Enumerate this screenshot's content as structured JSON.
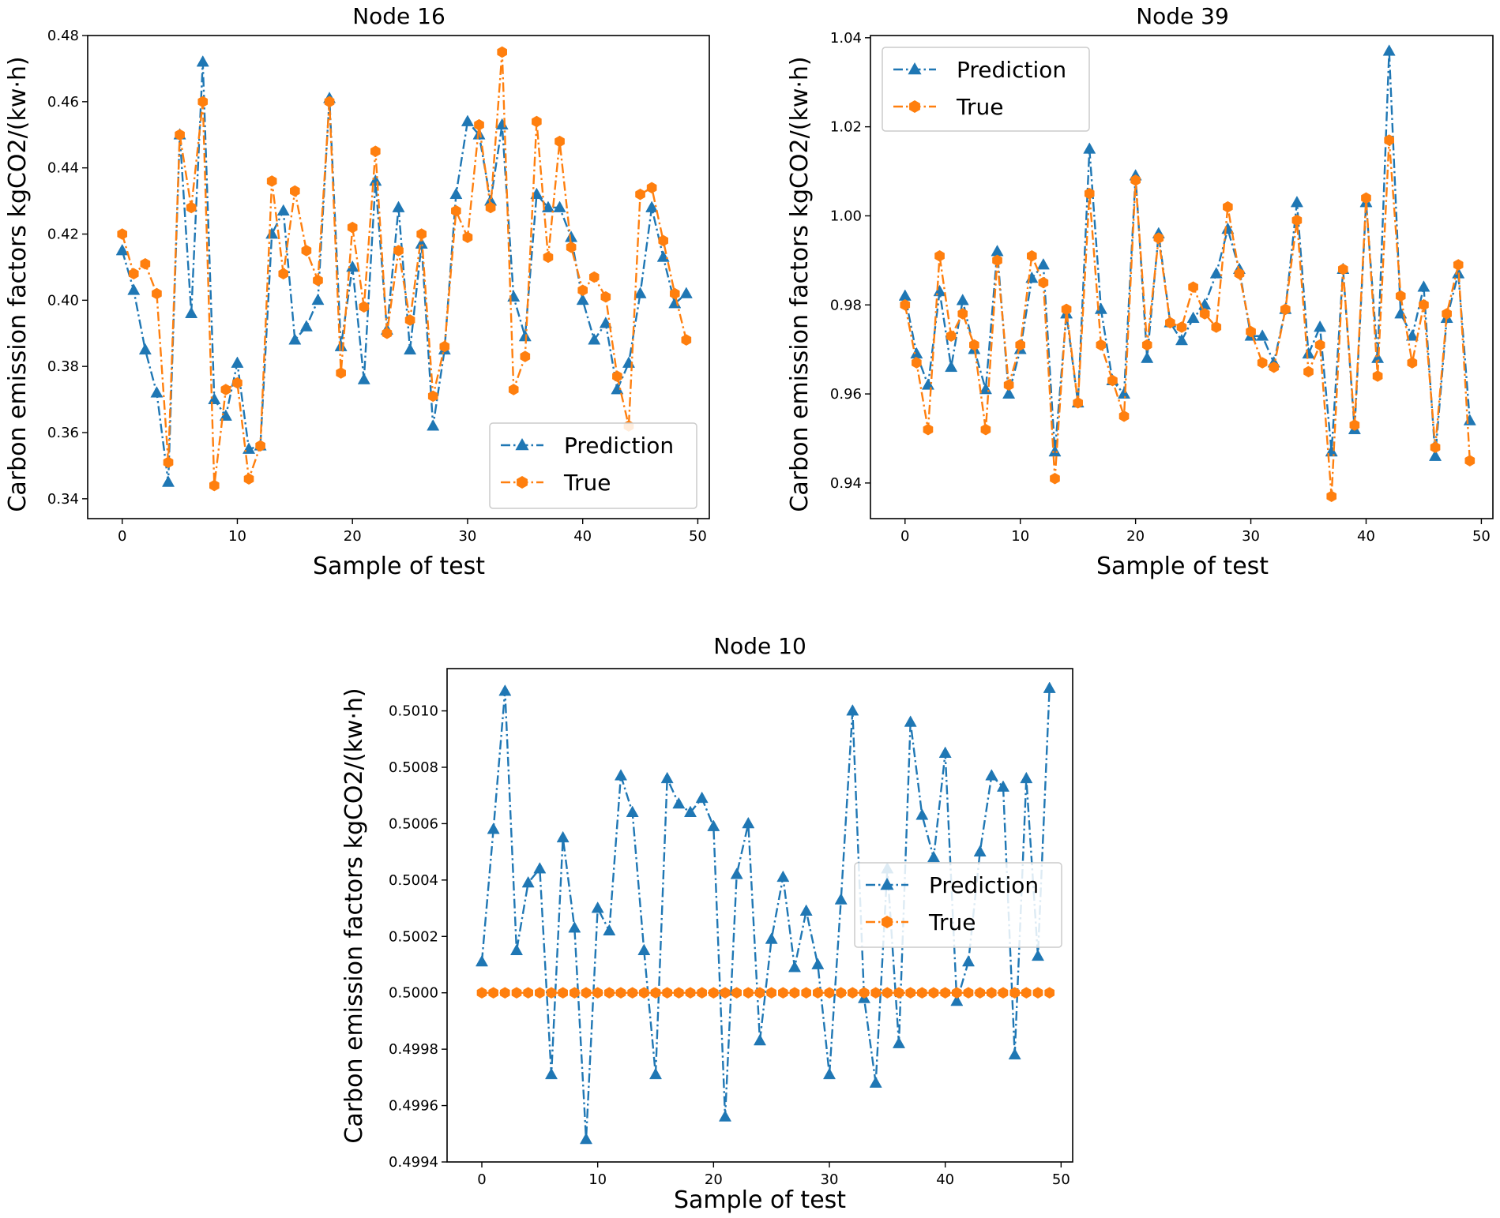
{
  "chart_data": [
    {
      "type": "line",
      "title": "Node 16",
      "xlabel": "Sample of test",
      "ylabel": "Carbon emission factors kgCO2/(kw·h)",
      "xlim": [
        -3,
        51
      ],
      "ylim": [
        0.334,
        0.48
      ],
      "xticks": [
        0,
        10,
        20,
        30,
        40,
        50
      ],
      "xtick_labels": [
        "0",
        "10",
        "20",
        "30",
        "40",
        "50"
      ],
      "yticks": [
        0.34,
        0.36,
        0.38,
        0.4,
        0.42,
        0.44,
        0.46,
        0.48
      ],
      "ytick_labels": [
        "0.34",
        "0.36",
        "0.38",
        "0.40",
        "0.42",
        "0.44",
        "0.46",
        "0.48"
      ],
      "legend_position": "lower-right",
      "series": [
        {
          "name": "Prediction",
          "color": "#1f77b4",
          "marker": "triangle",
          "linestyle": "dashdot",
          "values": [
            0.415,
            0.403,
            0.385,
            0.372,
            0.345,
            0.45,
            0.396,
            0.472,
            0.37,
            0.365,
            0.381,
            0.355,
            0.356,
            0.42,
            0.427,
            0.388,
            0.392,
            0.4,
            0.461,
            0.386,
            0.41,
            0.376,
            0.436,
            0.391,
            0.428,
            0.385,
            0.417,
            0.362,
            0.385,
            0.432,
            0.454,
            0.45,
            0.43,
            0.453,
            0.401,
            0.389,
            0.432,
            0.428,
            0.428,
            0.419,
            0.4,
            0.388,
            0.393,
            0.373,
            0.381,
            0.402,
            0.428,
            0.413,
            0.399,
            0.402
          ]
        },
        {
          "name": "True",
          "color": "#ff7f0e",
          "marker": "hexagon",
          "linestyle": "dashdot",
          "values": [
            0.42,
            0.408,
            0.411,
            0.402,
            0.351,
            0.45,
            0.428,
            0.46,
            0.344,
            0.373,
            0.375,
            0.346,
            0.356,
            0.436,
            0.408,
            0.433,
            0.415,
            0.406,
            0.46,
            0.378,
            0.422,
            0.398,
            0.445,
            0.39,
            0.415,
            0.394,
            0.42,
            0.371,
            0.386,
            0.427,
            0.419,
            0.453,
            0.428,
            0.475,
            0.373,
            0.383,
            0.454,
            0.413,
            0.448,
            0.416,
            0.403,
            0.407,
            0.401,
            0.377,
            0.362,
            0.432,
            0.434,
            0.418,
            0.402,
            0.388
          ]
        }
      ]
    },
    {
      "type": "line",
      "title": "Node 39",
      "xlabel": "Sample of test",
      "ylabel": "Carbon emission factors kgCO2/(kw·h)",
      "xlim": [
        -3,
        51
      ],
      "ylim": [
        0.932,
        1.0405
      ],
      "xticks": [
        0,
        10,
        20,
        30,
        40,
        50
      ],
      "xtick_labels": [
        "0",
        "10",
        "20",
        "30",
        "40",
        "50"
      ],
      "yticks": [
        0.94,
        0.96,
        0.98,
        1.0,
        1.02,
        1.04
      ],
      "ytick_labels": [
        "0.94",
        "0.96",
        "0.98",
        "1.00",
        "1.02",
        "1.04"
      ],
      "legend_position": "upper-left",
      "series": [
        {
          "name": "Prediction",
          "color": "#1f77b4",
          "marker": "triangle",
          "linestyle": "dashdot",
          "values": [
            0.982,
            0.969,
            0.962,
            0.983,
            0.966,
            0.981,
            0.97,
            0.961,
            0.992,
            0.96,
            0.97,
            0.986,
            0.989,
            0.947,
            0.978,
            0.958,
            1.015,
            0.979,
            0.963,
            0.96,
            1.009,
            0.968,
            0.996,
            0.976,
            0.972,
            0.977,
            0.98,
            0.987,
            0.997,
            0.988,
            0.973,
            0.973,
            0.967,
            0.979,
            1.003,
            0.969,
            0.975,
            0.947,
            0.988,
            0.952,
            1.003,
            0.968,
            1.037,
            0.978,
            0.973,
            0.984,
            0.946,
            0.977,
            0.987,
            0.954
          ]
        },
        {
          "name": "True",
          "color": "#ff7f0e",
          "marker": "hexagon",
          "linestyle": "dashdot",
          "values": [
            0.98,
            0.967,
            0.952,
            0.991,
            0.973,
            0.978,
            0.971,
            0.952,
            0.99,
            0.962,
            0.971,
            0.991,
            0.985,
            0.941,
            0.979,
            0.958,
            1.005,
            0.971,
            0.963,
            0.955,
            1.008,
            0.971,
            0.995,
            0.976,
            0.975,
            0.984,
            0.978,
            0.975,
            1.002,
            0.987,
            0.974,
            0.967,
            0.966,
            0.979,
            0.999,
            0.965,
            0.971,
            0.937,
            0.988,
            0.953,
            1.004,
            0.964,
            1.017,
            0.982,
            0.967,
            0.98,
            0.948,
            0.978,
            0.989,
            0.945
          ]
        }
      ]
    },
    {
      "type": "line",
      "title": "Node 10",
      "xlabel": "Sample of test",
      "ylabel": "Carbon emission factors kgCO2/(kw·h)",
      "xlim": [
        -3,
        51
      ],
      "ylim": [
        0.4994,
        0.50115
      ],
      "xticks": [
        0,
        10,
        20,
        30,
        40,
        50
      ],
      "xtick_labels": [
        "0",
        "10",
        "20",
        "30",
        "40",
        "50"
      ],
      "yticks": [
        0.4994,
        0.4996,
        0.4998,
        0.5,
        0.5002,
        0.5004,
        0.5006,
        0.5008,
        0.501
      ],
      "ytick_labels": [
        "0.4994",
        "0.4996",
        "0.4998",
        "0.5000",
        "0.5002",
        "0.5004",
        "0.5006",
        "0.5008",
        "0.5010"
      ],
      "legend_position": "center-right",
      "series": [
        {
          "name": "Prediction",
          "color": "#1f77b4",
          "marker": "triangle",
          "linestyle": "dashdot",
          "values": [
            0.50011,
            0.50058,
            0.50107,
            0.50015,
            0.50039,
            0.50044,
            0.49971,
            0.50055,
            0.50023,
            0.49948,
            0.5003,
            0.50022,
            0.50077,
            0.50064,
            0.50015,
            0.49971,
            0.50076,
            0.50067,
            0.50064,
            0.50069,
            0.50059,
            0.49956,
            0.50042,
            0.5006,
            0.49983,
            0.50019,
            0.50041,
            0.50009,
            0.50029,
            0.5001,
            0.49971,
            0.50033,
            0.501,
            0.49998,
            0.49968,
            0.50044,
            0.49982,
            0.50096,
            0.50063,
            0.50048,
            0.50085,
            0.49997,
            0.50011,
            0.5005,
            0.50077,
            0.50073,
            0.49978,
            0.50076,
            0.50013,
            0.50108
          ]
        },
        {
          "name": "True",
          "color": "#ff7f0e",
          "marker": "hexagon",
          "linestyle": "dashdot",
          "values": [
            0.5,
            0.5,
            0.5,
            0.5,
            0.5,
            0.5,
            0.5,
            0.5,
            0.5,
            0.5,
            0.5,
            0.5,
            0.5,
            0.5,
            0.5,
            0.5,
            0.5,
            0.5,
            0.5,
            0.5,
            0.5,
            0.5,
            0.5,
            0.5,
            0.5,
            0.5,
            0.5,
            0.5,
            0.5,
            0.5,
            0.5,
            0.5,
            0.5,
            0.5,
            0.5,
            0.5,
            0.5,
            0.5,
            0.5,
            0.5,
            0.5,
            0.5,
            0.5,
            0.5,
            0.5,
            0.5,
            0.5,
            0.5,
            0.5,
            0.5
          ]
        }
      ]
    }
  ]
}
